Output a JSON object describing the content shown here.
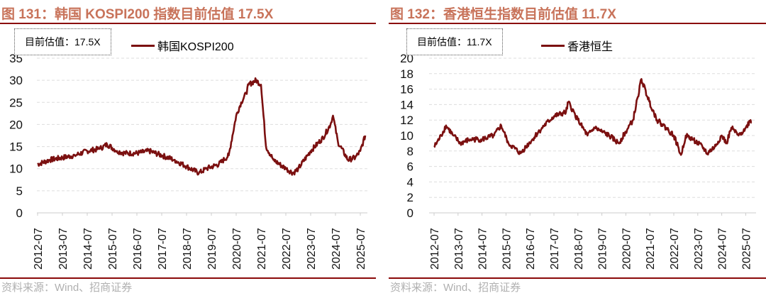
{
  "chart_data": [
    {
      "type": "line",
      "title": "图 131：韩国 KOSPI200 指数目前估值 17.5X",
      "annotation": "目前估值：17.5X",
      "legend": "韩国KOSPI200",
      "ylim": [
        0,
        35
      ],
      "yticks": [
        0,
        5,
        10,
        15,
        20,
        25,
        30,
        35
      ],
      "xticks": [
        "2012-07",
        "2013-07",
        "2014-07",
        "2015-07",
        "2016-07",
        "2017-07",
        "2018-07",
        "2019-07",
        "2020-07",
        "2021-07",
        "2022-07",
        "2023-07",
        "2024-07",
        "2025-07"
      ],
      "color": "#7b1010",
      "source": "资料来源：Wind、招商证券",
      "x": [
        2012.5,
        2013.0,
        2013.5,
        2014.0,
        2014.5,
        2015.0,
        2015.3,
        2015.7,
        2016.0,
        2016.5,
        2017.0,
        2017.5,
        2018.0,
        2018.5,
        2019.0,
        2019.3,
        2019.8,
        2020.2,
        2020.3,
        2020.5,
        2020.7,
        2020.9,
        2021.0,
        2021.3,
        2021.5,
        2021.7,
        2022.0,
        2022.5,
        2022.8,
        2023.0,
        2023.5,
        2024.0,
        2024.3,
        2024.4,
        2024.6,
        2025.0,
        2025.3,
        2025.5,
        2025.7
      ],
      "y": [
        11,
        12,
        12.5,
        13,
        14,
        14.5,
        15.5,
        14,
        13.5,
        13.5,
        14,
        13,
        12,
        10.5,
        9,
        10,
        11,
        13,
        16,
        22,
        25,
        27,
        29,
        30,
        29,
        15,
        12,
        10,
        9,
        10,
        14,
        17,
        20,
        22,
        16,
        12,
        12.5,
        14,
        17.5
      ]
    },
    {
      "type": "line",
      "title": "图 132：香港恒生指数目前估值 11.7X",
      "annotation": "目前估值：11.7X",
      "legend": "香港恒生",
      "ylim": [
        0,
        20
      ],
      "yticks": [
        0,
        2,
        4,
        6,
        8,
        10,
        12,
        14,
        16,
        18,
        20
      ],
      "xticks": [
        "2012-07",
        "2013-07",
        "2014-07",
        "2015-07",
        "2016-07",
        "2017-07",
        "2018-07",
        "2019-07",
        "2020-07",
        "2021-07",
        "2022-07",
        "2023-07",
        "2024-07",
        "2025-07"
      ],
      "color": "#7b1010",
      "source": "资料来源：Wind、招商证券",
      "x": [
        2012.5,
        2012.8,
        2013.0,
        2013.3,
        2013.6,
        2014.0,
        2014.5,
        2015.0,
        2015.3,
        2015.6,
        2016.1,
        2016.6,
        2017.0,
        2017.5,
        2018.0,
        2018.1,
        2018.5,
        2018.9,
        2019.2,
        2019.5,
        2019.8,
        2020.2,
        2020.5,
        2020.8,
        2021.0,
        2021.15,
        2021.4,
        2021.8,
        2022.0,
        2022.5,
        2022.8,
        2023.0,
        2023.3,
        2023.7,
        2023.9,
        2024.2,
        2024.5,
        2024.7,
        2024.9,
        2025.2,
        2025.5,
        2025.7,
        2025.75
      ],
      "y": [
        8.5,
        10,
        11.3,
        10,
        9,
        9.5,
        9.5,
        10,
        11.3,
        9,
        7.7,
        9.5,
        11,
        12.5,
        13,
        14.3,
        12,
        10,
        11,
        10.5,
        10,
        9,
        10.5,
        12,
        15,
        17.3,
        15,
        12,
        11.5,
        10,
        7.5,
        10,
        9.5,
        8.5,
        7.7,
        8.5,
        10,
        9,
        11,
        10,
        11,
        12,
        11.7
      ]
    }
  ]
}
